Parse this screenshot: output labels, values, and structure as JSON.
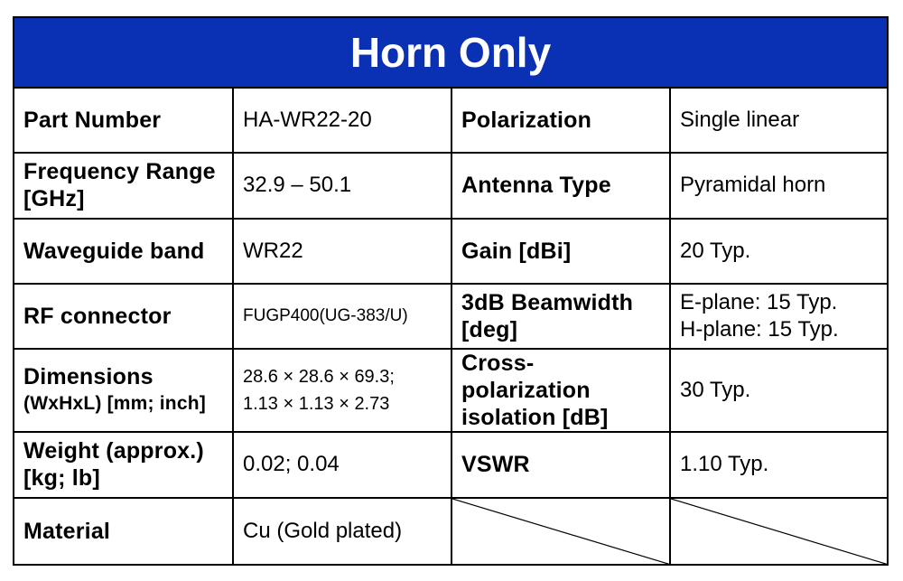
{
  "title": "Horn Only",
  "rows": [
    {
      "l1": "Part Number",
      "v1": "HA-WR22-20",
      "l2": "Polarization",
      "v2": "Single linear"
    },
    {
      "l1a": "Frequency Range",
      "l1b": "[GHz]",
      "v1": "32.9 – 50.1",
      "l2": "Antenna Type",
      "v2": "Pyramidal horn"
    },
    {
      "l1": "Waveguide band",
      "v1": "WR22",
      "l2": "Gain [dBi]",
      "v2": "20 Typ."
    },
    {
      "l1": "RF connector",
      "v1": "FUGP400(UG-383/U)",
      "l2a": "3dB Beamwidth",
      "l2b": "[deg]",
      "v2a": "E-plane: 15 Typ.",
      "v2b": "H-plane: 15 Typ."
    },
    {
      "l1a": "Dimensions",
      "l1b": "(WxHxL) [mm; inch]",
      "v1a": "28.6 × 28.6 × 69.3;",
      "v1b": "1.13 × 1.13 × 2.73",
      "l2a": "Cross-polarization",
      "l2b": "isolation [dB]",
      "v2": "30 Typ."
    },
    {
      "l1a": "Weight (approx.)",
      "l1b": "[kg; lb]",
      "v1": "0.02; 0.04",
      "l2": "VSWR",
      "v2": "1.10 Typ."
    },
    {
      "l1": "Material",
      "v1": "Cu (Gold plated)"
    }
  ]
}
